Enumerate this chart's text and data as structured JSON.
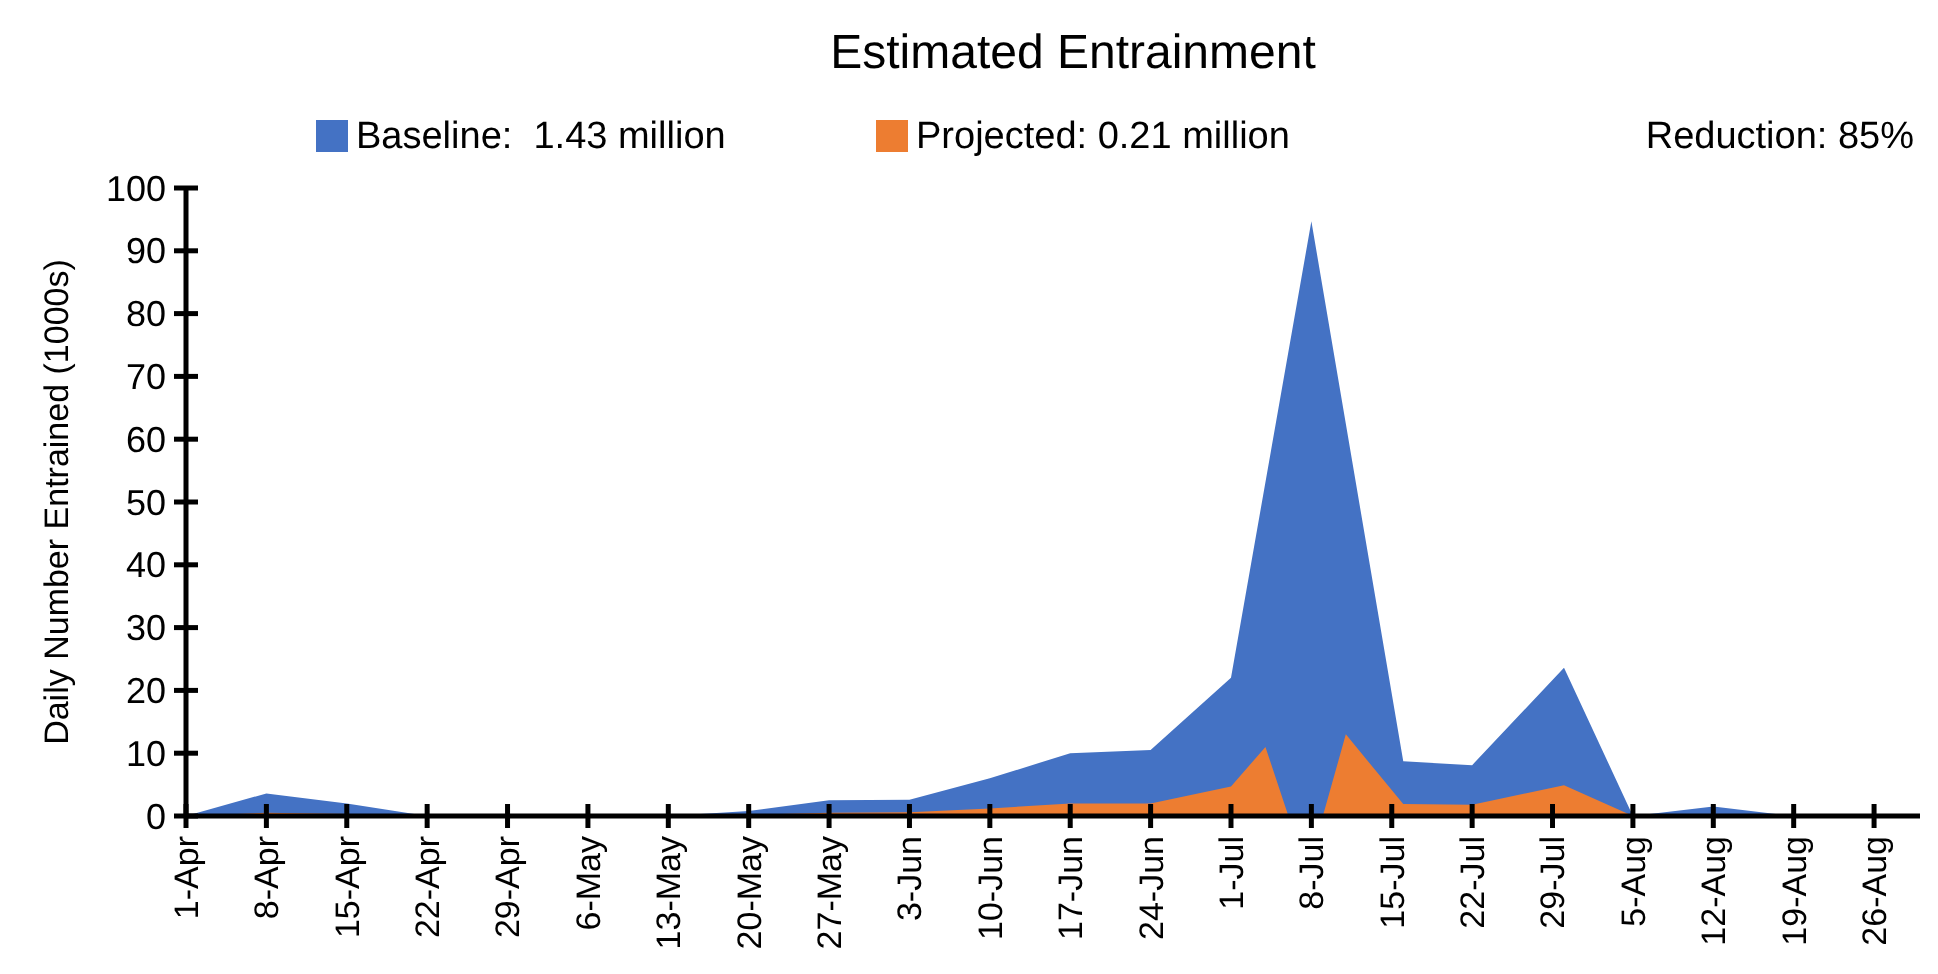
{
  "chart_data": {
    "type": "area",
    "title": "Estimated Entrainment",
    "ylabel": "Daily Number Entrained (1000s)",
    "series": [
      {
        "name": "Baseline:  1.43 million",
        "color": "#4472c4",
        "x": [
          "--04-01",
          "--04-08",
          "--04-15",
          "--04-22",
          "--04-29",
          "--05-06",
          "--05-13",
          "--05-20",
          "--05-27",
          "--06-03",
          "--06-10",
          "--06-17",
          "--06-24",
          "--07-01",
          "--07-08",
          "--07-16",
          "--07-22",
          "--07-30",
          "--08-05",
          "--08-12",
          "--08-19",
          "--08-26"
        ],
        "values": [
          0,
          3.6,
          2,
          0,
          0,
          0,
          0,
          0.8,
          2.5,
          2.6,
          6,
          10,
          10.5,
          22,
          94.7,
          8.7,
          8.1,
          23.6,
          0,
          1.5,
          0,
          0
        ]
      },
      {
        "name": "Projected: 0.21 million",
        "color": "#ed7d31",
        "x": [
          "--04-01",
          "--04-08",
          "--04-15",
          "--04-22",
          "--04-29",
          "--05-06",
          "--05-13",
          "--05-20",
          "--05-27",
          "--06-03",
          "--06-10",
          "--06-17",
          "--06-24",
          "--07-01",
          "--07-04",
          "--07-06",
          "--07-09",
          "--07-11",
          "--07-16",
          "--07-22",
          "--07-30",
          "--08-05",
          "--08-12",
          "--08-19",
          "--08-26"
        ],
        "values": [
          0,
          0.5,
          0.3,
          0,
          0,
          0,
          0,
          0.2,
          0.5,
          0.6,
          1.2,
          2,
          2,
          4.7,
          11,
          0,
          0,
          13,
          1.9,
          1.8,
          4.9,
          0,
          0.3,
          0,
          0
        ]
      }
    ],
    "annotations": [
      "Reduction: 85%"
    ],
    "xlim": [
      "--04-01",
      "--08-30"
    ],
    "xticks": [
      {
        "value": "--04-01",
        "label": "1-Apr"
      },
      {
        "value": "--04-08",
        "label": "8-Apr"
      },
      {
        "value": "--04-15",
        "label": "15-Apr"
      },
      {
        "value": "--04-22",
        "label": "22-Apr"
      },
      {
        "value": "--04-29",
        "label": "29-Apr"
      },
      {
        "value": "--05-06",
        "label": "6-May"
      },
      {
        "value": "--05-13",
        "label": "13-May"
      },
      {
        "value": "--05-20",
        "label": "20-May"
      },
      {
        "value": "--05-27",
        "label": "27-May"
      },
      {
        "value": "--06-03",
        "label": "3-Jun"
      },
      {
        "value": "--06-10",
        "label": "10-Jun"
      },
      {
        "value": "--06-17",
        "label": "17-Jun"
      },
      {
        "value": "--06-24",
        "label": "24-Jun"
      },
      {
        "value": "--07-01",
        "label": "1-Jul"
      },
      {
        "value": "--07-08",
        "label": "8-Jul"
      },
      {
        "value": "--07-15",
        "label": "15-Jul"
      },
      {
        "value": "--07-22",
        "label": "22-Jul"
      },
      {
        "value": "--07-29",
        "label": "29-Jul"
      },
      {
        "value": "--08-05",
        "label": "5-Aug"
      },
      {
        "value": "--08-12",
        "label": "12-Aug"
      },
      {
        "value": "--08-19",
        "label": "19-Aug"
      },
      {
        "value": "--08-26",
        "label": "26-Aug"
      }
    ],
    "ylim": [
      0,
      100
    ],
    "yticks": [
      0,
      10,
      20,
      30,
      40,
      50,
      60,
      70,
      80,
      90,
      100
    ],
    "grid": false,
    "legend": "top"
  }
}
